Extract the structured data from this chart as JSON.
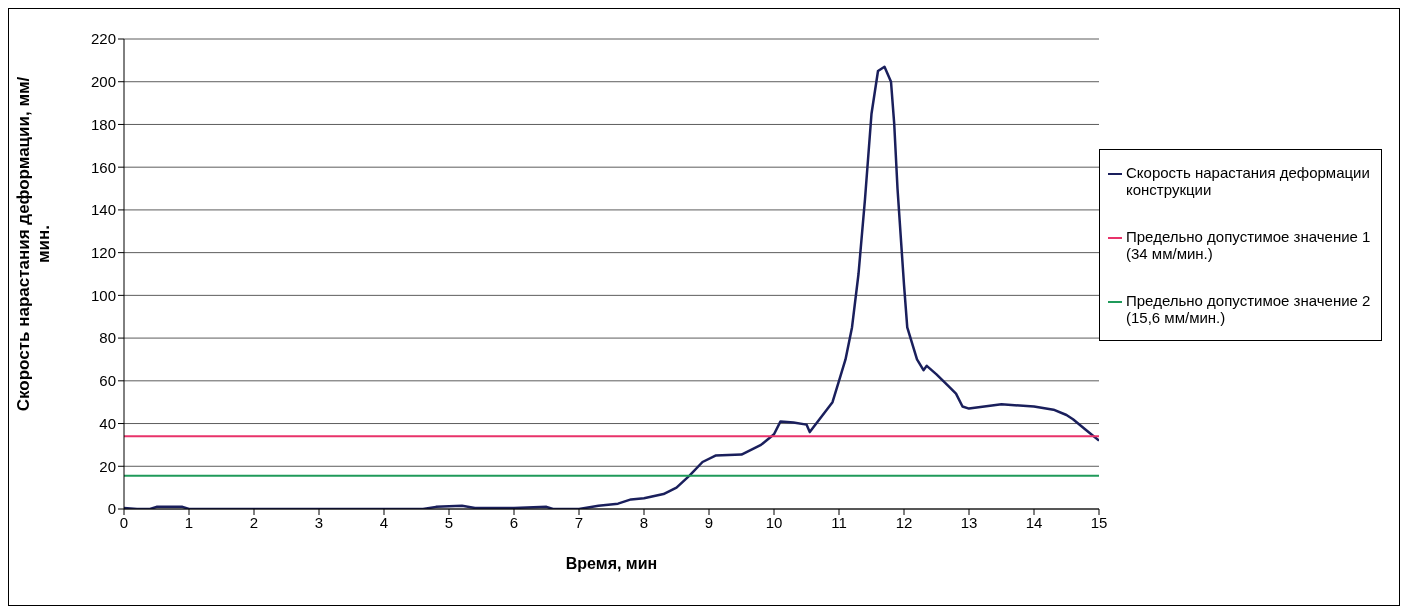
{
  "chart_data": {
    "type": "line",
    "xlabel": "Время, мин",
    "ylabel": "Скорость нарастания деформации, мм/мин.",
    "xlim": [
      0,
      15
    ],
    "xticks": [
      0,
      1,
      2,
      3,
      4,
      5,
      6,
      7,
      8,
      9,
      10,
      11,
      12,
      13,
      14,
      15
    ],
    "ylim": [
      0,
      220
    ],
    "yticks": [
      0,
      20,
      40,
      60,
      80,
      100,
      120,
      140,
      160,
      180,
      200,
      220
    ],
    "grid": "y",
    "legend": "right",
    "marker": "none",
    "line_style": "solid",
    "series": [
      {
        "name": "Скорость нарастания деформации конструкции",
        "color": "#1a1f5c",
        "x": [
          0,
          0.2,
          0.4,
          0.5,
          0.9,
          1,
          4.6,
          4.8,
          5.2,
          5.4,
          6,
          6.5,
          6.6,
          7,
          7.3,
          7.6,
          7.8,
          8,
          8.3,
          8.5,
          8.7,
          8.9,
          9.1,
          9.5,
          9.8,
          10,
          10.1,
          10.3,
          10.5,
          10.55,
          10.7,
          10.9,
          11,
          11.1,
          11.2,
          11.3,
          11.4,
          11.5,
          11.6,
          11.7,
          11.8,
          11.85,
          11.9,
          12,
          12.05,
          12.2,
          12.3,
          12.35,
          12.5,
          12.7,
          12.8,
          12.9,
          13,
          13.5,
          14,
          14.3,
          14.5,
          14.6,
          14.8,
          15
        ],
        "values": [
          0.5,
          0,
          0,
          1,
          1,
          0,
          0,
          1,
          1.5,
          0.5,
          0.5,
          1,
          0,
          0,
          1.5,
          2.5,
          4.5,
          5,
          7,
          10,
          15.6,
          22,
          25,
          25.5,
          30,
          35,
          41,
          40.5,
          39.5,
          36,
          42,
          50,
          60,
          70,
          85,
          110,
          145,
          185,
          205,
          207,
          200,
          180,
          150,
          105,
          85,
          70,
          65,
          67,
          63,
          57,
          54,
          48,
          47,
          49,
          48,
          46.5,
          44,
          42,
          37,
          32
        ]
      },
      {
        "name": "Предельно допустимое значение 1 (34 мм/мин.)",
        "color": "#e8336a",
        "x": [
          0,
          15
        ],
        "values": [
          34,
          34
        ]
      },
      {
        "name": "Предельно допустимое значение 2 (15,6 мм/мин.)",
        "color": "#1f9a5a",
        "x": [
          0,
          15
        ],
        "values": [
          15.6,
          15.6
        ]
      }
    ]
  }
}
